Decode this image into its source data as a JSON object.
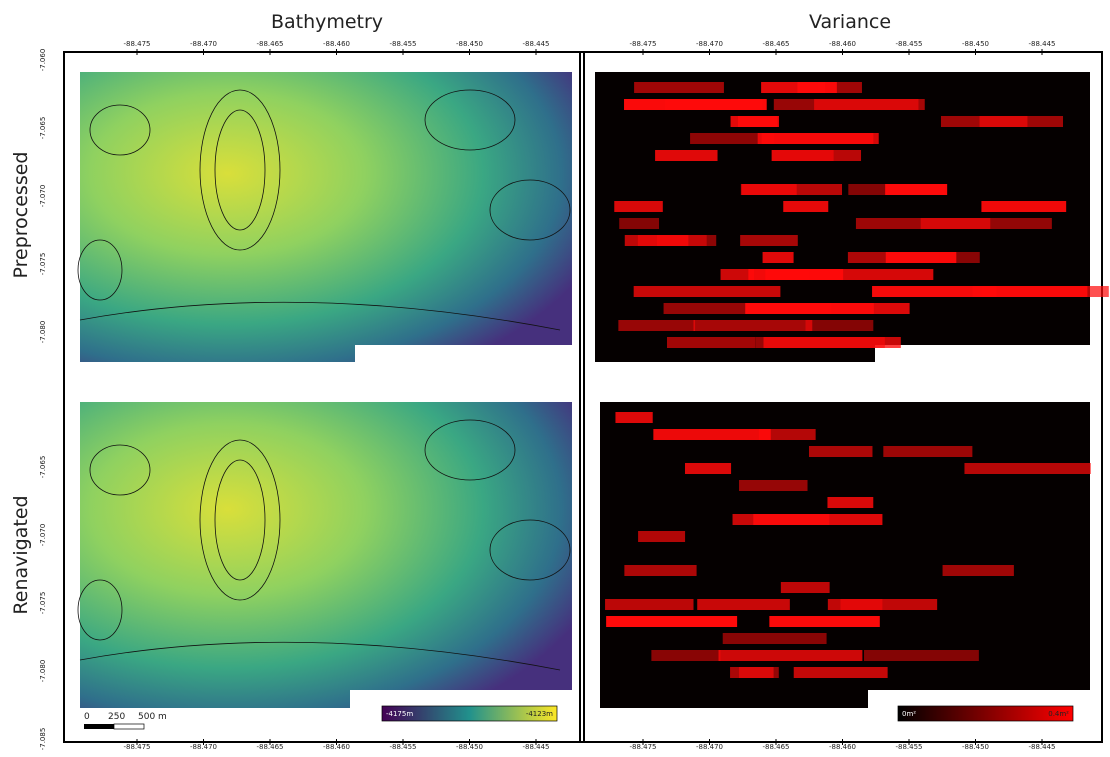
{
  "columns": [
    "Bathymetry",
    "Variance"
  ],
  "rows": [
    "Preprocessed",
    "Renavigated"
  ],
  "lon_ticks": [
    "-88.475",
    "-88.470",
    "-88.465",
    "-88.460",
    "-88.455",
    "-88.450",
    "-88.445"
  ],
  "lat_ticks_top": [
    "-7.060",
    "-7.065",
    "-7.070",
    "-7.075",
    "-7.080"
  ],
  "lat_ticks_bottom": [
    "-7.065",
    "-7.070",
    "-7.075",
    "-7.080",
    "-7.085"
  ],
  "scale_bar": [
    "0",
    "250",
    "500 m"
  ],
  "bathymetry_colorbar": [
    "-4175m",
    "-4123m"
  ],
  "variance_colorbar": [
    "0m²",
    "0.4m²"
  ]
}
